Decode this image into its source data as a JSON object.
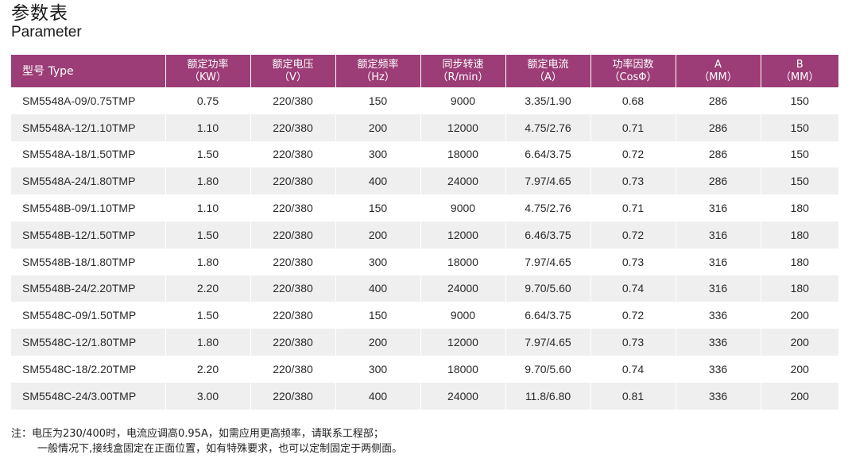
{
  "title": {
    "cn": "参数表",
    "en": "Parameter"
  },
  "table": {
    "headers": [
      {
        "label": "型号 Type",
        "unit": ""
      },
      {
        "label": "额定功率",
        "unit": "（KW）"
      },
      {
        "label": "额定电压",
        "unit": "（V）"
      },
      {
        "label": "额定频率",
        "unit": "（Hz）"
      },
      {
        "label": "同步转速",
        "unit": "（R/min）"
      },
      {
        "label": "额定电流",
        "unit": "（A）"
      },
      {
        "label": "功率因数",
        "unit": "（CosΦ）"
      },
      {
        "label": "A",
        "unit": "（MM）"
      },
      {
        "label": "B",
        "unit": "（MM）"
      }
    ],
    "rows": [
      [
        "SM5548A-09/0.75TMP",
        "0.75",
        "220/380",
        "150",
        "9000",
        "3.35/1.90",
        "0.68",
        "286",
        "150"
      ],
      [
        "SM5548A-12/1.10TMP",
        "1.10",
        "220/380",
        "200",
        "12000",
        "4.75/2.76",
        "0.71",
        "286",
        "150"
      ],
      [
        "SM5548A-18/1.50TMP",
        "1.50",
        "220/380",
        "300",
        "18000",
        "6.64/3.75",
        "0.72",
        "286",
        "150"
      ],
      [
        "SM5548A-24/1.80TMP",
        "1.80",
        "220/380",
        "400",
        "24000",
        "7.97/4.65",
        "0.73",
        "286",
        "150"
      ],
      [
        "SM5548B-09/1.10TMP",
        "1.10",
        "220/380",
        "150",
        "9000",
        "4.75/2.76",
        "0.71",
        "316",
        "180"
      ],
      [
        "SM5548B-12/1.50TMP",
        "1.50",
        "220/380",
        "200",
        "12000",
        "6.46/3.75",
        "0.72",
        "316",
        "180"
      ],
      [
        "SM5548B-18/1.80TMP",
        "1.80",
        "220/380",
        "300",
        "18000",
        "7.97/4.65",
        "0.73",
        "316",
        "180"
      ],
      [
        "SM5548B-24/2.20TMP",
        "2.20",
        "220/380",
        "400",
        "24000",
        "9.70/5.60",
        "0.74",
        "316",
        "180"
      ],
      [
        "SM5548C-09/1.50TMP",
        "1.50",
        "220/380",
        "150",
        "9000",
        "6.64/3.75",
        "0.72",
        "336",
        "200"
      ],
      [
        "SM5548C-12/1.80TMP",
        "1.80",
        "220/380",
        "200",
        "12000",
        "7.97/4.65",
        "0.73",
        "336",
        "200"
      ],
      [
        "SM5548C-18/2.20TMP",
        "2.20",
        "220/380",
        "300",
        "18000",
        "9.70/5.60",
        "0.74",
        "336",
        "200"
      ],
      [
        "SM5548C-24/3.00TMP",
        "3.00",
        "220/380",
        "400",
        "24000",
        "11.8/6.80",
        "0.81",
        "336",
        "200"
      ]
    ]
  },
  "notes": {
    "line1": "注：电压为230/400时，电流应调高0.95A，如需应用更高频率，请联系工程部；",
    "line2": "一般情况下,接线盒固定在正面位置，如有特殊要求，也可以定制固定于两侧面。"
  },
  "colors": {
    "header_bg": "#9c3d77",
    "row_alt_bg": "#efefef"
  }
}
